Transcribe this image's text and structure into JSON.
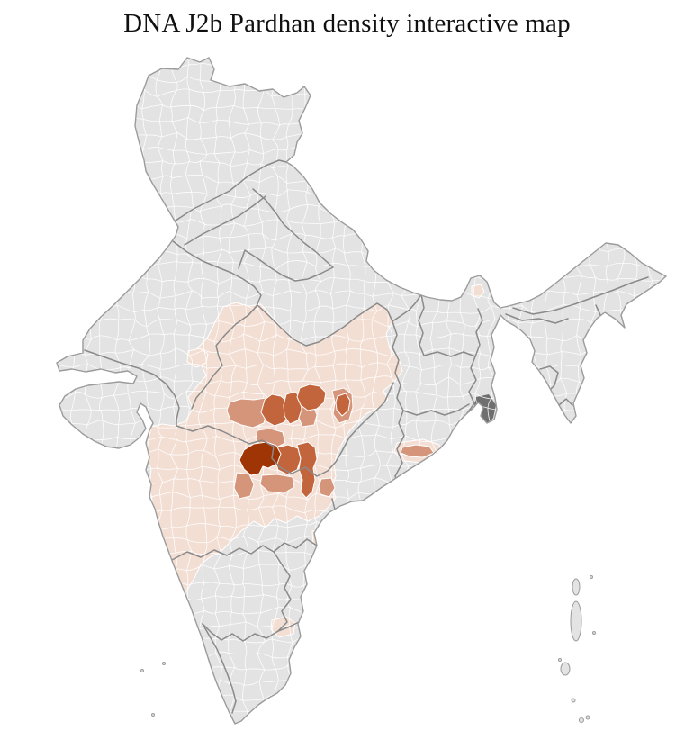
{
  "page": {
    "title": "DNA J2b Pardhan density interactive map"
  },
  "colors": {
    "background": "#ffffff",
    "nodata": "#e3e3e4",
    "low": "#f3ded3",
    "medium": "#d4957a",
    "high": "#c2653c",
    "highest": "#9f3404",
    "delta": "#6f6f6f",
    "stateborder": "#8a8a8a",
    "coast": "#9b9b9b",
    "districtline": "#ffffff"
  },
  "map": {
    "country": "India",
    "type": "choropleth of districts",
    "density_scale": [
      {
        "class": "none",
        "color": "#e3e3e4"
      },
      {
        "class": "low",
        "color": "#f3ded3"
      },
      {
        "class": "medium",
        "color": "#d4957a"
      },
      {
        "class": "high",
        "color": "#c2653c"
      },
      {
        "class": "highest",
        "color": "#9f3404"
      }
    ]
  }
}
